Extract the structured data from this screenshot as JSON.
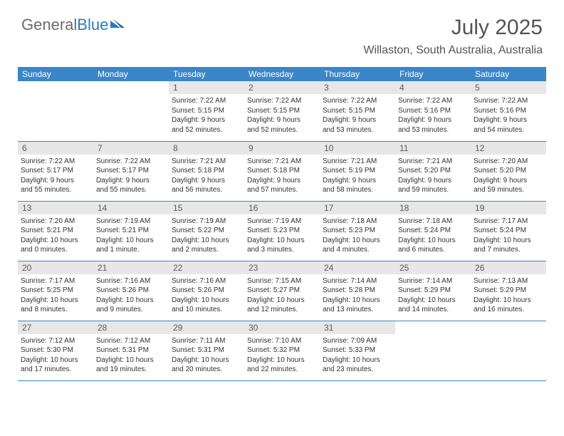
{
  "brand": {
    "part1": "General",
    "part2": "Blue",
    "color1": "#6b6b6b",
    "color2": "#2b7bbf"
  },
  "title": "July 2025",
  "location": "Willaston, South Australia, Australia",
  "theme": {
    "header_bg": "#3a86c8",
    "header_text": "#ffffff",
    "daynum_bg": "#e7e7e7",
    "daynum_text": "#5a5a5a",
    "border": "#3a86c8",
    "body_text": "#333333",
    "title_color": "#545454",
    "page_bg": "#ffffff",
    "font_family": "Arial, Helvetica, sans-serif",
    "title_fontsize": 30,
    "location_fontsize": 16,
    "dayhead_fontsize": 12,
    "daybody_fontsize": 10
  },
  "weekdays": [
    "Sunday",
    "Monday",
    "Tuesday",
    "Wednesday",
    "Thursday",
    "Friday",
    "Saturday"
  ],
  "weeks": [
    [
      null,
      null,
      {
        "n": "1",
        "sr": "Sunrise: 7:22 AM",
        "ss": "Sunset: 5:15 PM",
        "d1": "Daylight: 9 hours",
        "d2": "and 52 minutes."
      },
      {
        "n": "2",
        "sr": "Sunrise: 7:22 AM",
        "ss": "Sunset: 5:15 PM",
        "d1": "Daylight: 9 hours",
        "d2": "and 52 minutes."
      },
      {
        "n": "3",
        "sr": "Sunrise: 7:22 AM",
        "ss": "Sunset: 5:15 PM",
        "d1": "Daylight: 9 hours",
        "d2": "and 53 minutes."
      },
      {
        "n": "4",
        "sr": "Sunrise: 7:22 AM",
        "ss": "Sunset: 5:16 PM",
        "d1": "Daylight: 9 hours",
        "d2": "and 53 minutes."
      },
      {
        "n": "5",
        "sr": "Sunrise: 7:22 AM",
        "ss": "Sunset: 5:16 PM",
        "d1": "Daylight: 9 hours",
        "d2": "and 54 minutes."
      }
    ],
    [
      {
        "n": "6",
        "sr": "Sunrise: 7:22 AM",
        "ss": "Sunset: 5:17 PM",
        "d1": "Daylight: 9 hours",
        "d2": "and 55 minutes."
      },
      {
        "n": "7",
        "sr": "Sunrise: 7:22 AM",
        "ss": "Sunset: 5:17 PM",
        "d1": "Daylight: 9 hours",
        "d2": "and 55 minutes."
      },
      {
        "n": "8",
        "sr": "Sunrise: 7:21 AM",
        "ss": "Sunset: 5:18 PM",
        "d1": "Daylight: 9 hours",
        "d2": "and 56 minutes."
      },
      {
        "n": "9",
        "sr": "Sunrise: 7:21 AM",
        "ss": "Sunset: 5:18 PM",
        "d1": "Daylight: 9 hours",
        "d2": "and 57 minutes."
      },
      {
        "n": "10",
        "sr": "Sunrise: 7:21 AM",
        "ss": "Sunset: 5:19 PM",
        "d1": "Daylight: 9 hours",
        "d2": "and 58 minutes."
      },
      {
        "n": "11",
        "sr": "Sunrise: 7:21 AM",
        "ss": "Sunset: 5:20 PM",
        "d1": "Daylight: 9 hours",
        "d2": "and 59 minutes."
      },
      {
        "n": "12",
        "sr": "Sunrise: 7:20 AM",
        "ss": "Sunset: 5:20 PM",
        "d1": "Daylight: 9 hours",
        "d2": "and 59 minutes."
      }
    ],
    [
      {
        "n": "13",
        "sr": "Sunrise: 7:20 AM",
        "ss": "Sunset: 5:21 PM",
        "d1": "Daylight: 10 hours",
        "d2": "and 0 minutes."
      },
      {
        "n": "14",
        "sr": "Sunrise: 7:19 AM",
        "ss": "Sunset: 5:21 PM",
        "d1": "Daylight: 10 hours",
        "d2": "and 1 minute."
      },
      {
        "n": "15",
        "sr": "Sunrise: 7:19 AM",
        "ss": "Sunset: 5:22 PM",
        "d1": "Daylight: 10 hours",
        "d2": "and 2 minutes."
      },
      {
        "n": "16",
        "sr": "Sunrise: 7:19 AM",
        "ss": "Sunset: 5:23 PM",
        "d1": "Daylight: 10 hours",
        "d2": "and 3 minutes."
      },
      {
        "n": "17",
        "sr": "Sunrise: 7:18 AM",
        "ss": "Sunset: 5:23 PM",
        "d1": "Daylight: 10 hours",
        "d2": "and 4 minutes."
      },
      {
        "n": "18",
        "sr": "Sunrise: 7:18 AM",
        "ss": "Sunset: 5:24 PM",
        "d1": "Daylight: 10 hours",
        "d2": "and 6 minutes."
      },
      {
        "n": "19",
        "sr": "Sunrise: 7:17 AM",
        "ss": "Sunset: 5:24 PM",
        "d1": "Daylight: 10 hours",
        "d2": "and 7 minutes."
      }
    ],
    [
      {
        "n": "20",
        "sr": "Sunrise: 7:17 AM",
        "ss": "Sunset: 5:25 PM",
        "d1": "Daylight: 10 hours",
        "d2": "and 8 minutes."
      },
      {
        "n": "21",
        "sr": "Sunrise: 7:16 AM",
        "ss": "Sunset: 5:26 PM",
        "d1": "Daylight: 10 hours",
        "d2": "and 9 minutes."
      },
      {
        "n": "22",
        "sr": "Sunrise: 7:16 AM",
        "ss": "Sunset: 5:26 PM",
        "d1": "Daylight: 10 hours",
        "d2": "and 10 minutes."
      },
      {
        "n": "23",
        "sr": "Sunrise: 7:15 AM",
        "ss": "Sunset: 5:27 PM",
        "d1": "Daylight: 10 hours",
        "d2": "and 12 minutes."
      },
      {
        "n": "24",
        "sr": "Sunrise: 7:14 AM",
        "ss": "Sunset: 5:28 PM",
        "d1": "Daylight: 10 hours",
        "d2": "and 13 minutes."
      },
      {
        "n": "25",
        "sr": "Sunrise: 7:14 AM",
        "ss": "Sunset: 5:29 PM",
        "d1": "Daylight: 10 hours",
        "d2": "and 14 minutes."
      },
      {
        "n": "26",
        "sr": "Sunrise: 7:13 AM",
        "ss": "Sunset: 5:29 PM",
        "d1": "Daylight: 10 hours",
        "d2": "and 16 minutes."
      }
    ],
    [
      {
        "n": "27",
        "sr": "Sunrise: 7:12 AM",
        "ss": "Sunset: 5:30 PM",
        "d1": "Daylight: 10 hours",
        "d2": "and 17 minutes."
      },
      {
        "n": "28",
        "sr": "Sunrise: 7:12 AM",
        "ss": "Sunset: 5:31 PM",
        "d1": "Daylight: 10 hours",
        "d2": "and 19 minutes."
      },
      {
        "n": "29",
        "sr": "Sunrise: 7:11 AM",
        "ss": "Sunset: 5:31 PM",
        "d1": "Daylight: 10 hours",
        "d2": "and 20 minutes."
      },
      {
        "n": "30",
        "sr": "Sunrise: 7:10 AM",
        "ss": "Sunset: 5:32 PM",
        "d1": "Daylight: 10 hours",
        "d2": "and 22 minutes."
      },
      {
        "n": "31",
        "sr": "Sunrise: 7:09 AM",
        "ss": "Sunset: 5:33 PM",
        "d1": "Daylight: 10 hours",
        "d2": "and 23 minutes."
      },
      null,
      null
    ]
  ]
}
